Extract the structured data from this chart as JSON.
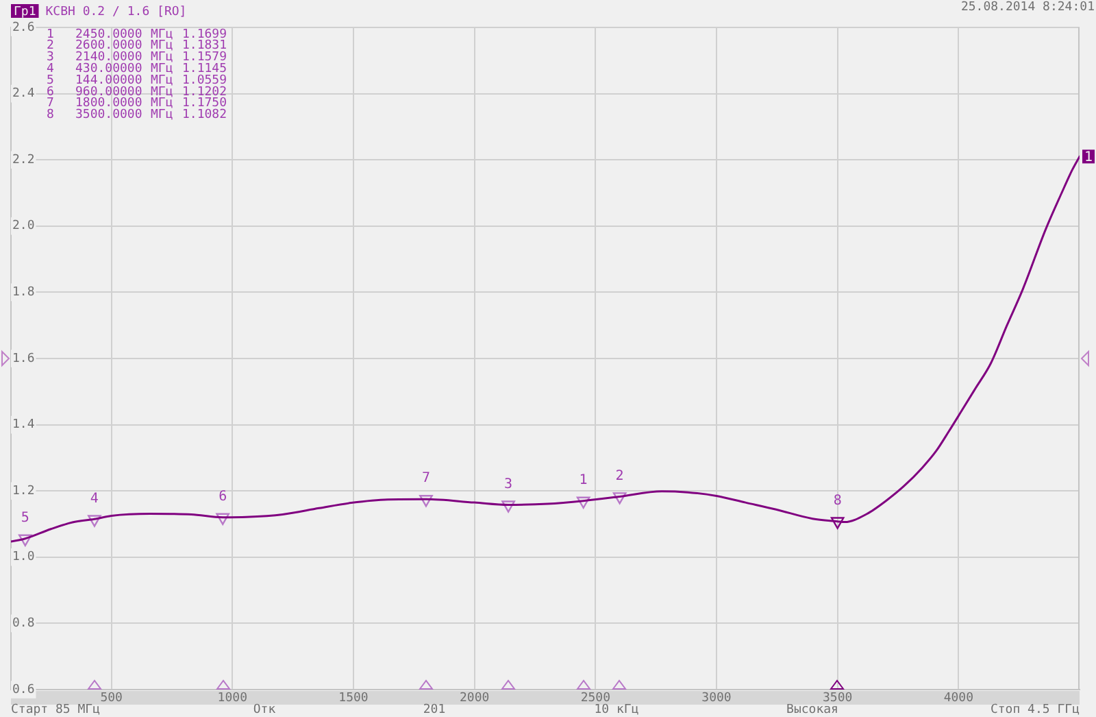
{
  "chart_data": {
    "type": "line",
    "title": "КСВН 0.2 / 1.6 [RO]",
    "xlim": [
      85,
      4500
    ],
    "xticks": [
      500,
      1000,
      1500,
      2000,
      2500,
      3000,
      3500,
      4000
    ],
    "ylim": [
      0.6,
      2.6
    ],
    "yticks": [
      0.6,
      0.8,
      {
        "value": 1,
        "label": "1.0"
      },
      1.2,
      1.4,
      1.6,
      1.8,
      {
        "value": 2,
        "label": "2.0"
      },
      2.2,
      2.4,
      2.6
    ],
    "grid": true,
    "legend": "top left",
    "series": [
      {
        "name": "Гр1",
        "color": "#800080",
        "x": [
          85,
          144,
          250,
          339,
          430,
          500,
          660,
          830,
          960,
          1057,
          1208,
          1358,
          1491,
          1642,
          1800,
          2000,
          2140,
          2302,
          2450,
          2600,
          2774,
          2880,
          3000,
          3120,
          3246,
          3397,
          3500,
          3530,
          3620,
          3700,
          3775,
          3850,
          3907,
          3960,
          4011,
          4070,
          4133,
          4200,
          4266,
          4360,
          4426,
          4470,
          4500
        ],
        "values": [
          1.047,
          1.056,
          1.085,
          1.105,
          1.115,
          1.125,
          1.131,
          1.129,
          1.12,
          1.121,
          1.129,
          1.148,
          1.164,
          1.174,
          1.175,
          1.165,
          1.158,
          1.161,
          1.17,
          1.183,
          1.199,
          1.196,
          1.185,
          1.165,
          1.144,
          1.116,
          1.108,
          1.106,
          1.13,
          1.17,
          1.215,
          1.27,
          1.32,
          1.38,
          1.44,
          1.51,
          1.585,
          1.7,
          1.81,
          1.99,
          2.1,
          2.17,
          2.21
        ]
      },
      {
        "type": "scatter",
        "marker": "triangle",
        "color": "#b878c8",
        "colors": [
          "#b878c8",
          "#b878c8",
          "#b878c8",
          "#b878c8",
          "#b878c8",
          "#b878c8",
          "#b878c8",
          "#800080"
        ],
        "x": [
          2450,
          2600,
          2140,
          430,
          144,
          960,
          1800,
          3500
        ],
        "values": [
          1.1699,
          1.1831,
          1.1579,
          1.1145,
          1.0559,
          1.1202,
          1.175,
          1.1082
        ]
      }
    ],
    "annotations": [
      "1 2450.0000 МГц 1.1699",
      "2 2600.0000 МГц 1.1831",
      "3 2140.0000 МГц 1.1579",
      "4 430.00000 МГц 1.1145",
      "5 144.00000 МГц 1.0559",
      "6 960.00000 МГц 1.1202",
      "7 1800.0000 МГц 1.1750",
      "8 3500.0000 МГц 1.1082",
      "25.08.2014 8:24:01",
      "Старт 85 МГц",
      "Отк",
      "201",
      "10 кГц",
      "Высокая",
      "Стоп 4.5 ГГц",
      {
        "text": "1",
        "x": 2450,
        "y": 1.1699
      },
      {
        "text": "2",
        "x": 2600,
        "y": 1.1831
      },
      {
        "text": "3",
        "x": 2140,
        "y": 1.1579
      },
      {
        "text": "4",
        "x": 430,
        "y": 1.1145
      },
      {
        "text": "5",
        "x": 144,
        "y": 1.0559
      },
      {
        "text": "6",
        "x": 960,
        "y": 1.1202
      },
      {
        "text": "7",
        "x": 1800,
        "y": 1.175
      },
      {
        "text": "8",
        "x": 3500,
        "y": 1.1082
      },
      {
        "text": "1",
        "x": 4500,
        "y": 2.21
      }
    ]
  }
}
